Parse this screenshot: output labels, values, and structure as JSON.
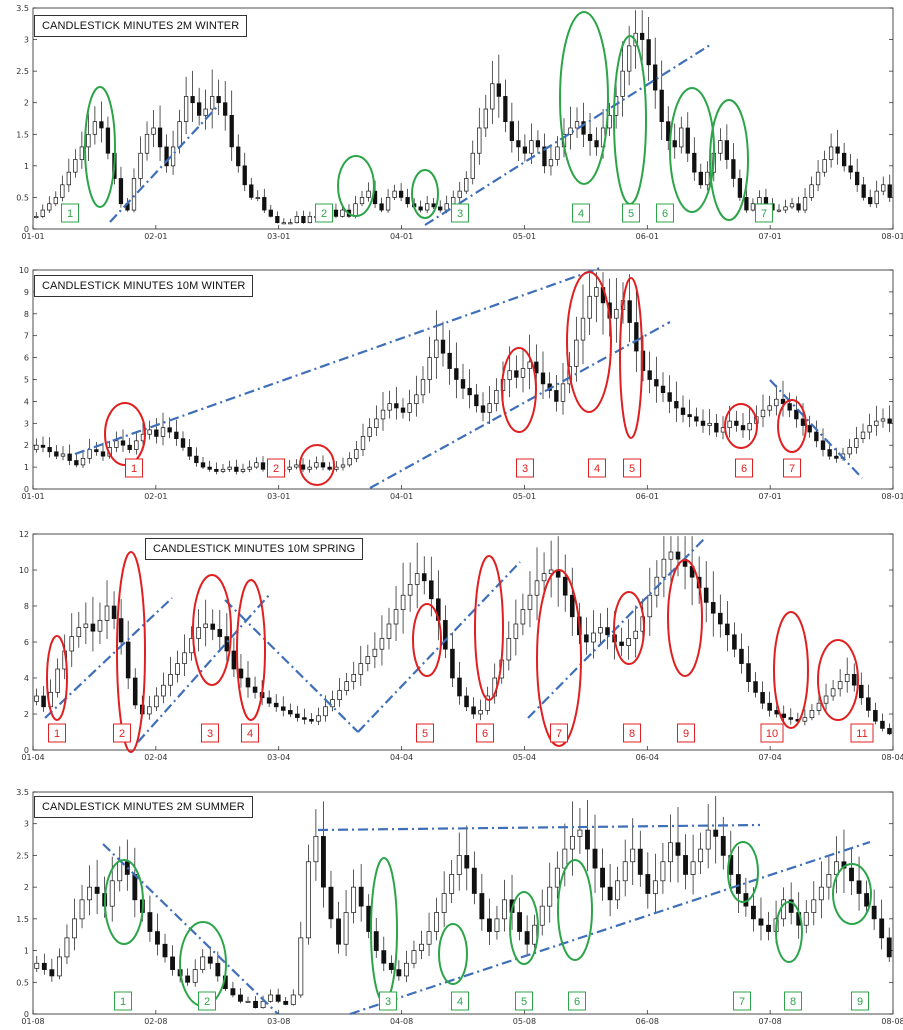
{
  "chart_data": [
    {
      "type": "candlestick",
      "title": "CANDLESTICK MINUTES 2M WINTER",
      "x_ticks": [
        "01-01",
        "02-01",
        "03-01",
        "04-01",
        "05-01",
        "06-01",
        "07-01",
        "08-01"
      ],
      "y_ticks": [
        "0",
        "0.5",
        "1",
        "1.5",
        "2",
        "2.5",
        "3",
        "3.5"
      ],
      "ylim": [
        0,
        3.5
      ],
      "annotation_color": "#2ca54a",
      "marker_labels": [
        "1",
        "2",
        "3",
        "4",
        "5",
        "6",
        "7"
      ],
      "close_series": [
        0.2,
        0.3,
        0.4,
        0.5,
        0.7,
        0.9,
        1.1,
        1.3,
        1.5,
        1.7,
        1.6,
        1.2,
        0.8,
        0.4,
        0.3,
        0.8,
        1.2,
        1.5,
        1.6,
        1.3,
        1.0,
        1.3,
        1.7,
        2.1,
        2.0,
        1.8,
        1.9,
        2.1,
        2.0,
        1.8,
        1.3,
        1.0,
        0.7,
        0.5,
        0.5,
        0.3,
        0.2,
        0.1,
        0.1,
        0.1,
        0.2,
        0.1,
        0.2,
        0.2,
        0.15,
        0.3,
        0.2,
        0.3,
        0.2,
        0.4,
        0.5,
        0.6,
        0.4,
        0.3,
        0.5,
        0.6,
        0.5,
        0.4,
        0.35,
        0.3,
        0.4,
        0.35,
        0.3,
        0.4,
        0.5,
        0.6,
        0.8,
        1.2,
        1.6,
        1.9,
        2.3,
        2.1,
        1.7,
        1.4,
        1.3,
        1.2,
        1.4,
        1.3,
        1.0,
        1.1,
        1.3,
        1.5,
        1.6,
        1.7,
        1.5,
        1.4,
        1.3,
        1.6,
        1.8,
        2.1,
        2.5,
        2.9,
        3.1,
        3.0,
        2.6,
        2.2,
        1.7,
        1.4,
        1.3,
        1.6,
        1.2,
        0.9,
        0.7,
        0.9,
        1.2,
        1.4,
        1.1,
        0.8,
        0.5,
        0.3,
        0.4,
        0.5,
        0.4,
        0.3,
        0.3,
        0.35,
        0.4,
        0.3,
        0.5,
        0.7,
        0.9,
        1.1,
        1.3,
        1.2,
        1.0,
        0.9,
        0.7,
        0.5,
        0.4,
        0.6,
        0.7,
        0.5
      ]
    },
    {
      "type": "candlestick",
      "title": "CANDLESTICK MINUTES 10M WINTER",
      "x_ticks": [
        "01-01",
        "02-01",
        "03-01",
        "04-01",
        "05-01",
        "06-01",
        "07-01",
        "08-01"
      ],
      "y_ticks": [
        "0",
        "1",
        "2",
        "3",
        "4",
        "5",
        "6",
        "7",
        "8",
        "9",
        "10"
      ],
      "ylim": [
        0,
        10
      ],
      "annotation_color": "#e02020",
      "marker_labels": [
        "1",
        "2",
        "3",
        "4",
        "5",
        "6",
        "7"
      ],
      "close_series": [
        2.0,
        1.9,
        1.7,
        1.5,
        1.6,
        1.3,
        1.1,
        1.4,
        1.8,
        1.7,
        1.5,
        1.9,
        2.2,
        2.0,
        1.8,
        2.2,
        2.5,
        2.7,
        2.4,
        2.8,
        2.6,
        2.3,
        1.9,
        1.5,
        1.2,
        1.0,
        0.9,
        0.8,
        0.9,
        1.0,
        0.8,
        0.9,
        1.0,
        1.2,
        0.9,
        1.0,
        0.8,
        0.9,
        1.0,
        1.1,
        0.9,
        1.0,
        1.2,
        1.0,
        0.9,
        1.0,
        1.1,
        1.4,
        1.8,
        2.4,
        2.8,
        3.2,
        3.6,
        3.9,
        3.7,
        3.5,
        3.9,
        4.3,
        5.0,
        6.0,
        6.8,
        6.2,
        5.5,
        5.0,
        4.6,
        4.3,
        3.8,
        3.5,
        3.9,
        4.5,
        5.0,
        5.4,
        5.1,
        5.5,
        5.8,
        5.3,
        4.8,
        4.5,
        4.0,
        4.8,
        5.6,
        6.8,
        7.8,
        8.8,
        9.2,
        8.5,
        7.8,
        8.2,
        8.6,
        7.6,
        6.3,
        5.4,
        5.0,
        4.7,
        4.4,
        4.0,
        3.7,
        3.4,
        3.3,
        3.1,
        2.9,
        3.0,
        2.6,
        2.8,
        3.1,
        2.9,
        2.7,
        3.0,
        3.3,
        3.6,
        3.8,
        4.1,
        3.9,
        3.6,
        3.2,
        2.9,
        2.6,
        2.2,
        1.8,
        1.5,
        1.4,
        1.6,
        1.9,
        2.3,
        2.6,
        2.9,
        3.1,
        3.2,
        3.0
      ]
    },
    {
      "type": "candlestick",
      "title": "CANDLESTICK MINUTES 10M SPRING",
      "x_ticks": [
        "01-04",
        "02-04",
        "03-04",
        "04-04",
        "05-04",
        "06-04",
        "07-04",
        "08-04"
      ],
      "y_ticks": [
        "0",
        "2",
        "4",
        "6",
        "8",
        "10",
        "12"
      ],
      "ylim": [
        0,
        12
      ],
      "annotation_color": "#e02020",
      "marker_labels": [
        "1",
        "2",
        "3",
        "4",
        "5",
        "6",
        "7",
        "8",
        "9",
        "10",
        "11"
      ],
      "close_series": [
        3.0,
        2.4,
        3.2,
        4.5,
        5.5,
        6.3,
        6.8,
        7.0,
        6.6,
        7.2,
        8.0,
        7.3,
        6.0,
        4.0,
        2.5,
        2.0,
        2.4,
        3.0,
        3.6,
        4.2,
        4.8,
        5.4,
        6.2,
        6.8,
        7.0,
        6.7,
        6.3,
        5.5,
        4.5,
        4.0,
        3.5,
        3.2,
        2.9,
        2.6,
        2.4,
        2.2,
        2.0,
        1.8,
        1.7,
        1.6,
        1.9,
        2.4,
        2.8,
        3.3,
        3.8,
        4.2,
        4.8,
        5.2,
        5.6,
        6.2,
        7.0,
        7.8,
        8.6,
        9.2,
        9.8,
        9.4,
        8.4,
        7.2,
        5.6,
        4.0,
        3.0,
        2.4,
        2.0,
        2.2,
        3.0,
        4.0,
        5.0,
        6.2,
        7.0,
        7.8,
        8.6,
        9.4,
        9.8,
        10.0,
        9.6,
        8.6,
        7.4,
        6.4,
        6.0,
        6.5,
        6.8,
        6.4,
        6.0,
        5.8,
        6.2,
        6.6,
        7.4,
        8.6,
        9.6,
        10.6,
        11.0,
        10.6,
        10.2,
        9.6,
        9.0,
        8.2,
        7.6,
        7.0,
        6.4,
        5.6,
        4.8,
        3.8,
        3.2,
        2.6,
        2.2,
        2.0,
        1.8,
        1.7,
        1.6,
        1.8,
        2.2,
        2.6,
        3.0,
        3.4,
        3.8,
        4.2,
        3.6,
        2.9,
        2.2,
        1.6,
        1.2,
        0.9
      ]
    },
    {
      "type": "candlestick",
      "title": "CANDLESTICK MINUTES 2M SUMMER",
      "x_ticks": [
        "01-08",
        "02-08",
        "03-08",
        "04-08",
        "05-08",
        "06-08",
        "07-08",
        "08-08"
      ],
      "y_ticks": [
        "0",
        "0.5",
        "1",
        "1.5",
        "2",
        "2.5",
        "3",
        "3.5"
      ],
      "ylim": [
        0,
        3.5
      ],
      "annotation_color": "#2ca54a",
      "marker_labels": [
        "1",
        "2",
        "3",
        "4",
        "5",
        "6",
        "7",
        "8",
        "9"
      ],
      "close_series": [
        0.8,
        0.7,
        0.6,
        0.9,
        1.2,
        1.5,
        1.8,
        2.0,
        1.9,
        1.7,
        2.1,
        2.4,
        2.2,
        1.8,
        1.6,
        1.3,
        1.1,
        0.9,
        0.7,
        0.6,
        0.5,
        0.7,
        0.9,
        0.8,
        0.6,
        0.4,
        0.3,
        0.2,
        0.2,
        0.1,
        0.2,
        0.3,
        0.2,
        0.15,
        0.3,
        1.2,
        2.4,
        2.8,
        2.0,
        1.5,
        1.1,
        1.6,
        2.0,
        1.7,
        1.3,
        1.0,
        0.8,
        0.7,
        0.6,
        0.8,
        1.0,
        1.1,
        1.3,
        1.6,
        1.9,
        2.2,
        2.5,
        2.3,
        1.9,
        1.5,
        1.3,
        1.5,
        1.8,
        1.6,
        1.3,
        1.1,
        1.4,
        1.7,
        2.0,
        2.3,
        2.6,
        2.8,
        2.9,
        2.6,
        2.3,
        2.0,
        1.8,
        2.1,
        2.4,
        2.6,
        2.2,
        1.9,
        2.1,
        2.4,
        2.7,
        2.5,
        2.2,
        2.4,
        2.6,
        2.9,
        2.8,
        2.5,
        2.2,
        1.9,
        1.7,
        1.5,
        1.4,
        1.3,
        1.5,
        1.8,
        1.6,
        1.4,
        1.6,
        1.8,
        2.0,
        2.2,
        2.4,
        2.3,
        2.1,
        1.9,
        1.7,
        1.5,
        1.2,
        0.9
      ]
    }
  ]
}
